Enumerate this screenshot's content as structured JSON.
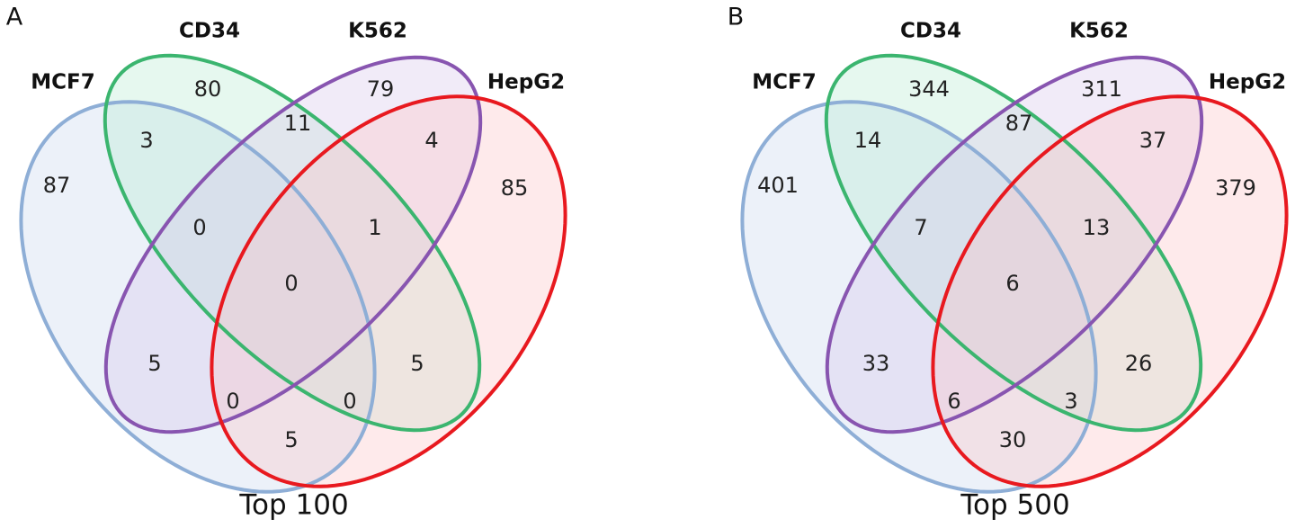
{
  "sets": [
    {
      "name": "MCF7",
      "stroke": "#8eaed6",
      "fill": "#c9d8ee"
    },
    {
      "name": "CD34",
      "stroke": "#3bb56f",
      "fill": "#b8ead0"
    },
    {
      "name": "K562",
      "stroke": "#8855b0",
      "fill": "#d6c7ea"
    },
    {
      "name": "HepG2",
      "stroke": "#e8191f",
      "fill": "#fbc4c6"
    }
  ],
  "panels": [
    {
      "letter": "A",
      "caption": "Top 100",
      "counts": {
        "MCF7_only": "87",
        "CD34_only": "80",
        "K562_only": "79",
        "HepG2_only": "85",
        "MCF7_CD34": "3",
        "CD34_K562": "11",
        "K562_HepG2": "4",
        "MCF7_CD34_K562": "0",
        "CD34_K562_HepG2": "1",
        "all": "0",
        "MCF7_K562": "5",
        "CD34_HepG2": "5",
        "MCF7_K562_HepG2": "0",
        "MCF7_CD34_HepG2": "0",
        "MCF7_HepG2": "5"
      }
    },
    {
      "letter": "B",
      "caption": "Top 500",
      "counts": {
        "MCF7_only": "401",
        "CD34_only": "344",
        "K562_only": "311",
        "HepG2_only": "379",
        "MCF7_CD34": "14",
        "CD34_K562": "87",
        "K562_HepG2": "37",
        "MCF7_CD34_K562": "7",
        "CD34_K562_HepG2": "13",
        "all": "6",
        "MCF7_K562": "33",
        "CD34_HepG2": "26",
        "MCF7_K562_HepG2": "6",
        "MCF7_CD34_HepG2": "3",
        "MCF7_HepG2": "30"
      }
    }
  ]
}
